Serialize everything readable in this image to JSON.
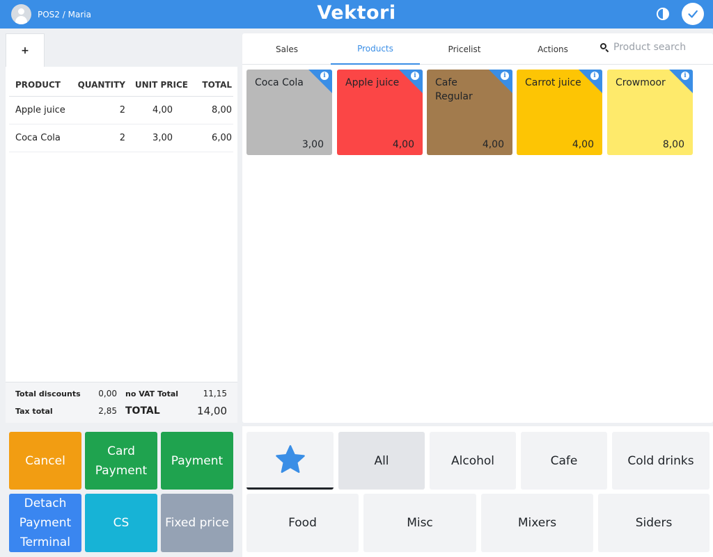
{
  "header": {
    "user": "POS2 / Maria",
    "brand": "Vektori",
    "icons": {
      "user": "user-avatar-icon",
      "theme": "contrast-toggle-icon",
      "confirm": "checkmark-icon"
    },
    "accent_color": "#3a8ee6"
  },
  "order": {
    "new_tab_label": "+",
    "columns": {
      "product": "PRODUCT",
      "quantity": "QUANTITY",
      "unit_price": "UNIT PRICE",
      "total": "TOTAL"
    },
    "lines": [
      {
        "product": "Apple juice",
        "quantity": "2",
        "unit_price": "4,00",
        "total": "8,00"
      },
      {
        "product": "Coca Cola",
        "quantity": "2",
        "unit_price": "3,00",
        "total": "6,00"
      }
    ],
    "summary": {
      "total_discounts_label": "Total discounts",
      "total_discounts": "0,00",
      "no_vat_total_label": "no VAT Total",
      "no_vat_total": "11,15",
      "tax_total_label": "Tax total",
      "tax_total": "2,85",
      "total_label": "TOTAL",
      "total": "14,00"
    }
  },
  "actions": {
    "cancel": "Cancel",
    "card_payment": "Card Payment",
    "payment": "Payment",
    "detach_terminal": "Detach Payment Terminal",
    "cs": "CS",
    "fixed_price": "Fixed price",
    "colors": {
      "cancel": "#f29d12",
      "payment": "#1fa34f",
      "detach": "#3a86f0",
      "cs": "#17b3d6",
      "fixed": "#95a2b4"
    }
  },
  "tabs": [
    "Sales",
    "Products",
    "Pricelist",
    "Actions"
  ],
  "active_tab": "Products",
  "search": {
    "placeholder": "Product search",
    "value": ""
  },
  "products": [
    {
      "name": "Coca Cola",
      "price": "3,00",
      "color": "#b9b9b9"
    },
    {
      "name": "Apple juice",
      "price": "4,00",
      "color": "#fb4646"
    },
    {
      "name": "Cafe Regular",
      "price": "4,00",
      "color": "#a27b4d"
    },
    {
      "name": "Carrot juice",
      "price": "4,00",
      "color": "#fdc504"
    },
    {
      "name": "Crowmoor",
      "price": "8,00",
      "color": "#feea6b"
    }
  ],
  "categories": {
    "favorites_icon": "star-icon",
    "row1": [
      "All",
      "Alcohol",
      "Cafe",
      "Cold drinks"
    ],
    "row2": [
      "Food",
      "Misc",
      "Mixers",
      "Siders"
    ],
    "selected": "All"
  }
}
